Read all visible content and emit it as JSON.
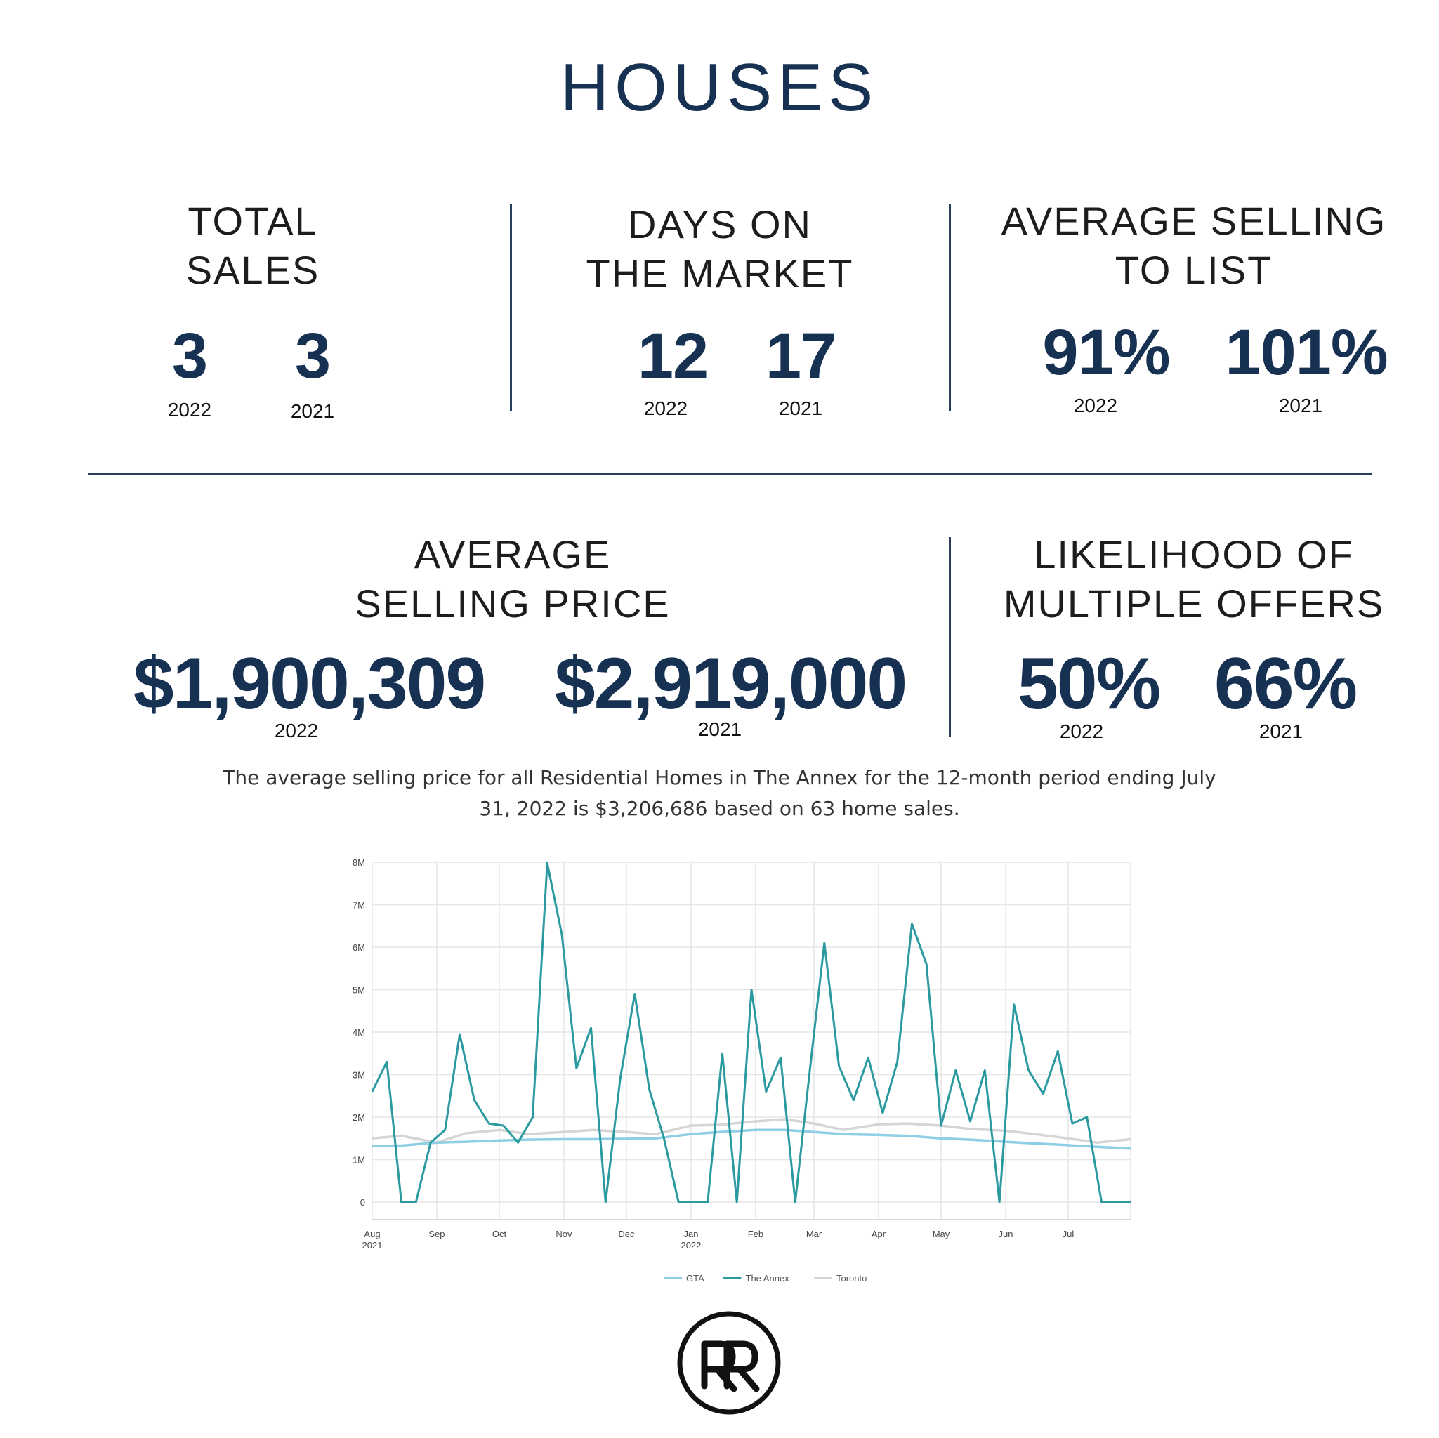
{
  "title": "HOUSES",
  "stats_top": [
    {
      "label": "TOTAL\nSALES",
      "v2022": "3",
      "v2021": "3",
      "y2022": "2022",
      "y2021": "2021"
    },
    {
      "label": "DAYS ON\nTHE MARKET",
      "v2022": "12",
      "v2021": "17",
      "y2022": "2022",
      "y2021": "2021"
    },
    {
      "label": "AVERAGE SELLING\nTO LIST",
      "v2022": "91%",
      "v2021": "101%",
      "y2022": "2022",
      "y2021": "2021"
    }
  ],
  "stats_bottom": [
    {
      "label": "AVERAGE\nSELLING PRICE",
      "v2022": "$1,900,309",
      "v2021": "$2,919,000",
      "y2022": "2022",
      "y2021": "2021"
    },
    {
      "label": "LIKELIHOOD OF\nMULTIPLE OFFERS",
      "v2022": "50%",
      "v2021": "66%",
      "y2022": "2022",
      "y2021": "2021"
    }
  ],
  "note": "The average selling price for all Residential Homes in The Annex for the 12-month period ending July 31, 2022 is $3,206,686 based on 63 home sales.",
  "chart_data": {
    "type": "line",
    "title": "",
    "xlabel": "",
    "ylabel": "",
    "ylim": [
      0,
      8000000
    ],
    "grid": true,
    "legend_position": "bottom",
    "y_ticks": [
      "0",
      "1M",
      "2M",
      "3M",
      "4M",
      "5M",
      "6M",
      "7M",
      "8M"
    ],
    "x_tick_labels": [
      {
        "label": "Aug",
        "sub": "2021"
      },
      {
        "label": "Sep",
        "sub": ""
      },
      {
        "label": "Oct",
        "sub": ""
      },
      {
        "label": "Nov",
        "sub": ""
      },
      {
        "label": "Dec",
        "sub": ""
      },
      {
        "label": "Jan",
        "sub": "2022"
      },
      {
        "label": "Feb",
        "sub": ""
      },
      {
        "label": "Mar",
        "sub": ""
      },
      {
        "label": "Apr",
        "sub": ""
      },
      {
        "label": "May",
        "sub": ""
      },
      {
        "label": "Jun",
        "sub": ""
      },
      {
        "label": "Jul",
        "sub": ""
      }
    ],
    "x_start": "2021-08-01",
    "x_end": "2022-07-31",
    "series": [
      {
        "name": "GTA",
        "color": "#8ecfe6",
        "dates": [
          "2021-08-01",
          "2021-08-15",
          "2021-09-01",
          "2021-09-15",
          "2021-10-01",
          "2021-10-15",
          "2021-11-01",
          "2021-11-15",
          "2021-12-01",
          "2021-12-15",
          "2022-01-01",
          "2022-01-15",
          "2022-02-01",
          "2022-02-15",
          "2022-03-01",
          "2022-03-15",
          "2022-04-01",
          "2022-04-15",
          "2022-05-01",
          "2022-05-15",
          "2022-06-01",
          "2022-06-15",
          "2022-07-01",
          "2022-07-15",
          "2022-07-31"
        ],
        "values": [
          1320000,
          1330000,
          1400000,
          1420000,
          1450000,
          1470000,
          1480000,
          1480000,
          1490000,
          1500000,
          1600000,
          1650000,
          1700000,
          1700000,
          1650000,
          1600000,
          1580000,
          1560000,
          1500000,
          1470000,
          1420000,
          1380000,
          1340000,
          1300000,
          1260000
        ]
      },
      {
        "name": "The Annex",
        "color": "#2b9aa0",
        "dates": [
          "2021-08-01",
          "2021-08-08",
          "2021-08-15",
          "2021-08-22",
          "2021-08-29",
          "2021-09-05",
          "2021-09-12",
          "2021-09-19",
          "2021-09-26",
          "2021-10-03",
          "2021-10-10",
          "2021-10-17",
          "2021-10-24",
          "2021-10-31",
          "2021-11-07",
          "2021-11-14",
          "2021-11-21",
          "2021-11-28",
          "2021-12-05",
          "2021-12-12",
          "2021-12-19",
          "2021-12-26",
          "2022-01-02",
          "2022-01-09",
          "2022-01-16",
          "2022-01-23",
          "2022-01-30",
          "2022-02-06",
          "2022-02-13",
          "2022-02-20",
          "2022-02-27",
          "2022-03-06",
          "2022-03-13",
          "2022-03-20",
          "2022-03-27",
          "2022-04-03",
          "2022-04-10",
          "2022-04-17",
          "2022-04-24",
          "2022-05-01",
          "2022-05-08",
          "2022-05-15",
          "2022-05-22",
          "2022-05-29",
          "2022-06-05",
          "2022-06-12",
          "2022-06-19",
          "2022-06-26",
          "2022-07-03",
          "2022-07-10",
          "2022-07-17",
          "2022-07-24",
          "2022-07-31"
        ],
        "values": [
          2600000,
          3300000,
          0,
          0,
          1400000,
          1700000,
          3950000,
          2400000,
          1850000,
          1800000,
          1400000,
          2000000,
          7980000,
          6300000,
          3150000,
          4100000,
          0,
          2900000,
          4900000,
          2650000,
          1500000,
          0,
          0,
          0,
          3500000,
          0,
          5000000,
          2600000,
          3400000,
          0,
          3100000,
          6100000,
          3200000,
          2400000,
          3400000,
          2100000,
          3300000,
          6550000,
          5600000,
          1800000,
          3100000,
          1900000,
          3100000,
          0,
          4650000,
          3100000,
          2550000,
          3550000,
          1850000,
          2000000,
          0,
          0,
          0
        ]
      },
      {
        "name": "Toronto",
        "color": "#d5d5d5",
        "dates": [
          "2021-08-01",
          "2021-08-15",
          "2021-09-01",
          "2021-09-15",
          "2021-10-01",
          "2021-10-15",
          "2021-11-01",
          "2021-11-15",
          "2021-12-01",
          "2021-12-15",
          "2022-01-01",
          "2022-01-15",
          "2022-02-01",
          "2022-02-15",
          "2022-03-01",
          "2022-03-15",
          "2022-04-01",
          "2022-04-15",
          "2022-05-01",
          "2022-05-15",
          "2022-06-01",
          "2022-06-15",
          "2022-07-01",
          "2022-07-15",
          "2022-07-31"
        ],
        "values": [
          1500000,
          1560000,
          1400000,
          1620000,
          1700000,
          1600000,
          1650000,
          1700000,
          1650000,
          1600000,
          1800000,
          1820000,
          1900000,
          1950000,
          1850000,
          1700000,
          1830000,
          1850000,
          1800000,
          1720000,
          1680000,
          1600000,
          1500000,
          1400000,
          1480000
        ]
      }
    ]
  }
}
